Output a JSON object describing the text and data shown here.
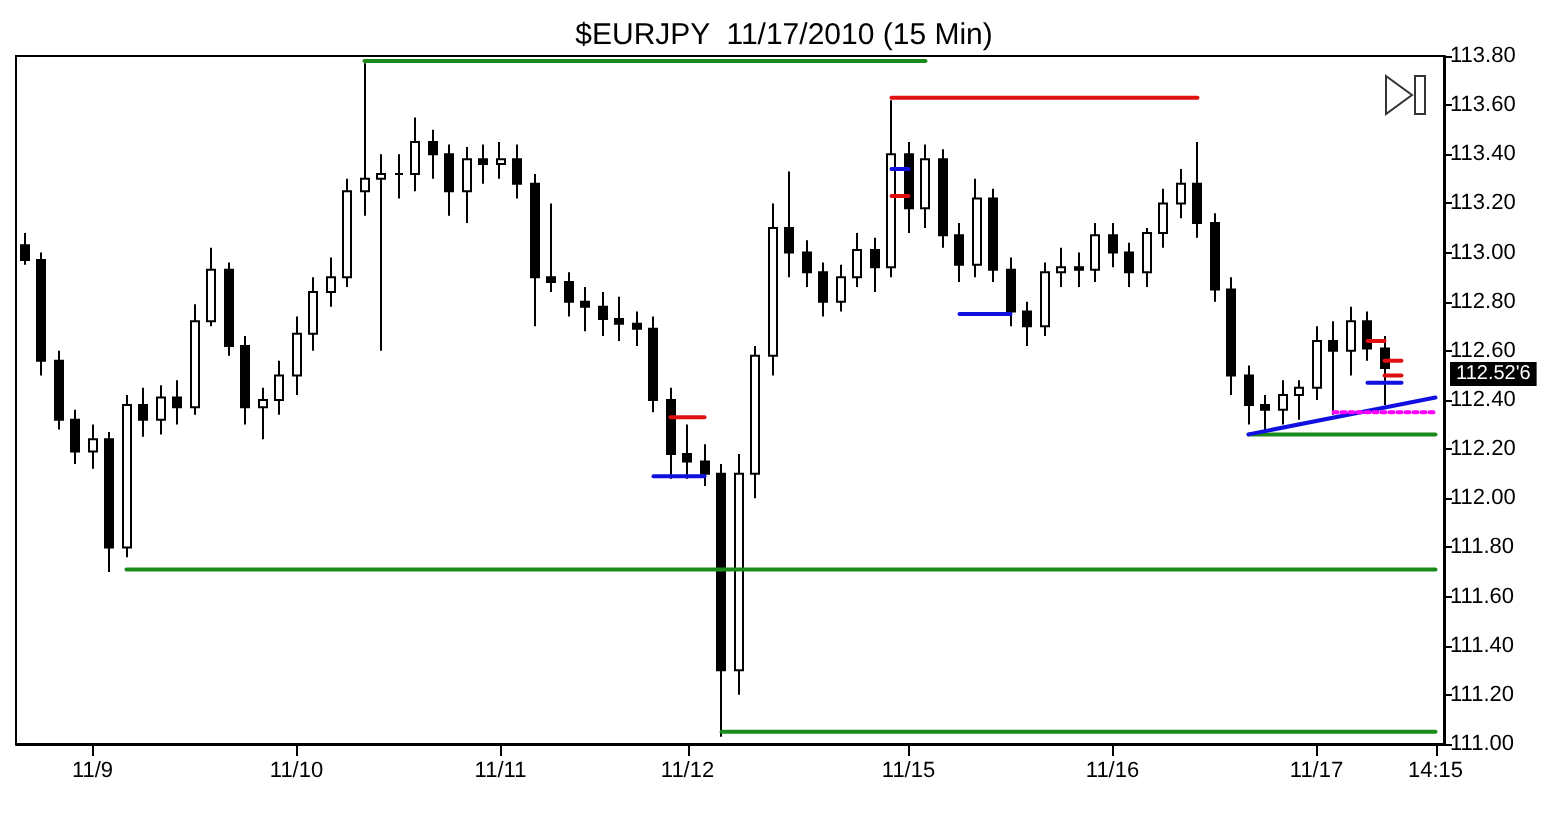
{
  "chart_data": {
    "type": "candlestick",
    "title": "$EURJPY  11/17/2010 (15 Min)",
    "categories": [
      null,
      null,
      null,
      null,
      "11/9",
      null,
      null,
      null,
      null,
      null,
      null,
      null,
      null,
      null,
      null,
      null,
      "11/10",
      null,
      null,
      null,
      null,
      null,
      null,
      null,
      null,
      null,
      null,
      null,
      "11/11",
      null,
      null,
      null,
      null,
      null,
      null,
      null,
      null,
      null,
      null,
      "11/12",
      null,
      null,
      null,
      null,
      null,
      null,
      null,
      null,
      null,
      null,
      null,
      null,
      "11/15",
      null,
      null,
      null,
      null,
      null,
      null,
      null,
      null,
      null,
      null,
      null,
      "11/16",
      null,
      null,
      null,
      null,
      null,
      null,
      null,
      null,
      null,
      null,
      null,
      "11/17",
      null,
      null,
      null,
      null,
      null,
      null,
      "14:15"
    ],
    "ohlc": [
      [
        113.03,
        113.08,
        112.95,
        112.97
      ],
      [
        112.97,
        113.0,
        112.5,
        112.56
      ],
      [
        112.56,
        112.6,
        112.28,
        112.32
      ],
      [
        112.32,
        112.36,
        112.14,
        112.19
      ],
      [
        112.19,
        112.3,
        112.12,
        112.24
      ],
      [
        112.24,
        112.27,
        111.7,
        111.8
      ],
      [
        111.8,
        112.42,
        111.76,
        112.38
      ],
      [
        112.38,
        112.45,
        112.25,
        112.32
      ],
      [
        112.32,
        112.46,
        112.26,
        112.41
      ],
      [
        112.41,
        112.48,
        112.3,
        112.37
      ],
      [
        112.37,
        112.79,
        112.34,
        112.72
      ],
      [
        112.72,
        113.02,
        112.7,
        112.93
      ],
      [
        112.93,
        112.96,
        112.58,
        112.62
      ],
      [
        112.62,
        112.66,
        112.3,
        112.37
      ],
      [
        112.37,
        112.45,
        112.24,
        112.4
      ],
      [
        112.4,
        112.56,
        112.34,
        112.5
      ],
      [
        112.5,
        112.74,
        112.42,
        112.67
      ],
      [
        112.67,
        112.9,
        112.6,
        112.84
      ],
      [
        112.84,
        112.98,
        112.78,
        112.9
      ],
      [
        112.9,
        113.3,
        112.86,
        113.25
      ],
      [
        113.25,
        113.77,
        113.15,
        113.3
      ],
      [
        113.3,
        113.4,
        112.6,
        113.32
      ],
      [
        113.32,
        113.4,
        113.22,
        113.32
      ],
      [
        113.32,
        113.55,
        113.25,
        113.45
      ],
      [
        113.45,
        113.5,
        113.3,
        113.4
      ],
      [
        113.4,
        113.44,
        113.15,
        113.25
      ],
      [
        113.25,
        113.43,
        113.12,
        113.38
      ],
      [
        113.38,
        113.44,
        113.28,
        113.36
      ],
      [
        113.36,
        113.45,
        113.3,
        113.38
      ],
      [
        113.38,
        113.44,
        113.22,
        113.28
      ],
      [
        113.28,
        113.32,
        112.7,
        112.9
      ],
      [
        112.9,
        113.2,
        112.84,
        112.88
      ],
      [
        112.88,
        112.92,
        112.74,
        112.8
      ],
      [
        112.8,
        112.86,
        112.68,
        112.78
      ],
      [
        112.78,
        112.84,
        112.66,
        112.73
      ],
      [
        112.73,
        112.82,
        112.64,
        112.71
      ],
      [
        112.71,
        112.76,
        112.62,
        112.69
      ],
      [
        112.69,
        112.74,
        112.35,
        112.4
      ],
      [
        112.4,
        112.45,
        112.08,
        112.18
      ],
      [
        112.18,
        112.3,
        112.08,
        112.15
      ],
      [
        112.15,
        112.22,
        112.05,
        112.1
      ],
      [
        112.1,
        112.14,
        111.03,
        111.3
      ],
      [
        111.3,
        112.18,
        111.2,
        112.1
      ],
      [
        112.1,
        112.62,
        112.0,
        112.58
      ],
      [
        112.58,
        113.2,
        112.5,
        113.1
      ],
      [
        113.1,
        113.33,
        112.9,
        113.0
      ],
      [
        113.0,
        113.05,
        112.86,
        112.92
      ],
      [
        112.92,
        112.96,
        112.74,
        112.8
      ],
      [
        112.8,
        112.95,
        112.76,
        112.9
      ],
      [
        112.9,
        113.08,
        112.86,
        113.01
      ],
      [
        113.01,
        113.06,
        112.84,
        112.94
      ],
      [
        112.94,
        113.62,
        112.9,
        113.4
      ],
      [
        113.4,
        113.45,
        113.08,
        113.18
      ],
      [
        113.18,
        113.44,
        113.1,
        113.38
      ],
      [
        113.38,
        113.42,
        113.02,
        113.07
      ],
      [
        113.07,
        113.12,
        112.88,
        112.95
      ],
      [
        112.95,
        113.3,
        112.9,
        113.22
      ],
      [
        113.22,
        113.26,
        112.88,
        112.93
      ],
      [
        112.93,
        112.98,
        112.7,
        112.76
      ],
      [
        112.76,
        112.8,
        112.62,
        112.7
      ],
      [
        112.7,
        112.96,
        112.66,
        112.92
      ],
      [
        112.92,
        113.02,
        112.86,
        112.94
      ],
      [
        112.94,
        113.0,
        112.86,
        112.93
      ],
      [
        112.93,
        113.12,
        112.88,
        113.07
      ],
      [
        113.07,
        113.12,
        112.94,
        113.0
      ],
      [
        113.0,
        113.04,
        112.86,
        112.92
      ],
      [
        112.92,
        113.1,
        112.86,
        113.08
      ],
      [
        113.08,
        113.26,
        113.02,
        113.2
      ],
      [
        113.2,
        113.34,
        113.14,
        113.28
      ],
      [
        113.28,
        113.45,
        113.06,
        113.12
      ],
      [
        113.12,
        113.16,
        112.8,
        112.85
      ],
      [
        112.85,
        112.9,
        112.42,
        112.5
      ],
      [
        112.5,
        112.54,
        112.3,
        112.38
      ],
      [
        112.38,
        112.42,
        112.26,
        112.36
      ],
      [
        112.36,
        112.48,
        112.3,
        112.42
      ],
      [
        112.42,
        112.48,
        112.32,
        112.45
      ],
      [
        112.45,
        112.7,
        112.4,
        112.64
      ],
      [
        112.64,
        112.72,
        112.34,
        112.6
      ],
      [
        112.6,
        112.78,
        112.5,
        112.72
      ],
      [
        112.72,
        112.76,
        112.56,
        112.61
      ],
      [
        112.61,
        112.66,
        112.38,
        112.53
      ],
      null,
      null,
      null
    ],
    "color": "#000000",
    "series": [
      {
        "type": "line",
        "color": "#1a8a1a",
        "values": [
          null,
          null,
          null,
          null,
          null,
          null,
          null,
          null,
          null,
          null,
          null,
          null,
          null,
          null,
          null,
          null,
          null,
          null,
          null,
          null,
          113.78,
          null,
          null,
          null,
          null,
          null,
          null,
          null,
          null,
          null,
          null,
          null,
          null,
          null,
          null,
          null,
          null,
          null,
          null,
          null,
          null,
          null,
          null,
          null,
          null,
          null,
          null,
          null,
          null,
          null,
          null,
          null,
          null,
          113.78,
          null,
          null,
          null,
          null,
          null,
          null,
          null,
          null,
          null,
          null,
          null,
          null,
          null,
          null,
          null,
          null,
          null,
          null,
          null,
          null,
          null,
          null,
          null,
          null,
          null,
          null,
          null,
          null,
          null,
          null
        ]
      },
      {
        "type": "line",
        "color": "#e01010",
        "values": [
          null,
          null,
          null,
          null,
          null,
          null,
          null,
          null,
          null,
          null,
          null,
          null,
          null,
          null,
          null,
          null,
          null,
          null,
          null,
          null,
          null,
          null,
          null,
          null,
          null,
          null,
          null,
          null,
          null,
          null,
          null,
          null,
          null,
          null,
          null,
          null,
          null,
          null,
          null,
          null,
          null,
          null,
          null,
          null,
          null,
          null,
          null,
          null,
          null,
          null,
          null,
          113.63,
          null,
          null,
          null,
          null,
          null,
          null,
          null,
          null,
          null,
          null,
          null,
          null,
          null,
          null,
          null,
          null,
          null,
          113.63,
          null,
          null,
          null,
          null,
          null,
          null,
          null,
          null,
          null,
          null,
          null,
          null,
          null,
          null
        ]
      },
      {
        "type": "line",
        "color": "#1a8a1a",
        "values": [
          null,
          null,
          null,
          null,
          null,
          null,
          111.71,
          null,
          null,
          null,
          null,
          null,
          null,
          null,
          null,
          null,
          null,
          null,
          null,
          null,
          null,
          null,
          null,
          null,
          null,
          null,
          null,
          null,
          null,
          null,
          null,
          null,
          null,
          null,
          null,
          null,
          null,
          null,
          null,
          null,
          null,
          null,
          null,
          null,
          null,
          null,
          null,
          null,
          null,
          null,
          null,
          null,
          null,
          null,
          null,
          null,
          null,
          null,
          null,
          null,
          null,
          null,
          null,
          null,
          null,
          null,
          null,
          null,
          null,
          null,
          null,
          null,
          null,
          null,
          null,
          null,
          null,
          null,
          null,
          null,
          null,
          null,
          null,
          111.71
        ]
      },
      {
        "type": "line",
        "color": "#1a8a1a",
        "values": [
          null,
          null,
          null,
          null,
          null,
          null,
          null,
          null,
          null,
          null,
          null,
          null,
          null,
          null,
          null,
          null,
          null,
          null,
          null,
          null,
          null,
          null,
          null,
          null,
          null,
          null,
          null,
          null,
          null,
          null,
          null,
          null,
          null,
          null,
          null,
          null,
          null,
          null,
          null,
          null,
          null,
          111.05,
          null,
          null,
          null,
          null,
          null,
          null,
          null,
          null,
          null,
          null,
          null,
          null,
          null,
          null,
          null,
          null,
          null,
          null,
          null,
          null,
          null,
          null,
          null,
          null,
          null,
          null,
          null,
          null,
          null,
          null,
          null,
          null,
          null,
          null,
          null,
          null,
          null,
          null,
          null,
          null,
          null,
          111.05
        ]
      },
      {
        "type": "line",
        "color": "#1a8a1a",
        "values": [
          null,
          null,
          null,
          null,
          null,
          null,
          null,
          null,
          null,
          null,
          null,
          null,
          null,
          null,
          null,
          null,
          null,
          null,
          null,
          null,
          null,
          null,
          null,
          null,
          null,
          null,
          null,
          null,
          null,
          null,
          null,
          null,
          null,
          null,
          null,
          null,
          null,
          null,
          null,
          null,
          null,
          null,
          null,
          null,
          null,
          null,
          null,
          null,
          null,
          null,
          null,
          null,
          null,
          null,
          null,
          null,
          null,
          null,
          null,
          null,
          null,
          null,
          null,
          null,
          null,
          null,
          null,
          null,
          null,
          null,
          null,
          null,
          112.26,
          null,
          null,
          null,
          null,
          null,
          null,
          null,
          null,
          null,
          null,
          112.26
        ]
      },
      {
        "type": "line",
        "color": "#1010e0",
        "values": [
          null,
          null,
          null,
          null,
          null,
          null,
          null,
          null,
          null,
          null,
          null,
          null,
          null,
          null,
          null,
          null,
          null,
          null,
          null,
          null,
          null,
          null,
          null,
          null,
          null,
          null,
          null,
          null,
          null,
          null,
          null,
          null,
          null,
          null,
          null,
          null,
          null,
          null,
          null,
          null,
          null,
          null,
          null,
          null,
          null,
          null,
          null,
          null,
          null,
          null,
          null,
          null,
          null,
          null,
          null,
          null,
          null,
          null,
          null,
          null,
          null,
          null,
          null,
          null,
          null,
          null,
          null,
          null,
          null,
          null,
          null,
          null,
          112.26,
          null,
          null,
          null,
          null,
          null,
          null,
          null,
          null,
          null,
          null,
          112.41
        ]
      },
      {
        "type": "line",
        "color": "#ff00ff",
        "line_style": "dotted",
        "values": [
          null,
          null,
          null,
          null,
          null,
          null,
          null,
          null,
          null,
          null,
          null,
          null,
          null,
          null,
          null,
          null,
          null,
          null,
          null,
          null,
          null,
          null,
          null,
          null,
          null,
          null,
          null,
          null,
          null,
          null,
          null,
          null,
          null,
          null,
          null,
          null,
          null,
          null,
          null,
          null,
          null,
          null,
          null,
          null,
          null,
          null,
          null,
          null,
          null,
          null,
          null,
          null,
          null,
          null,
          null,
          null,
          null,
          null,
          null,
          null,
          null,
          null,
          null,
          null,
          null,
          null,
          null,
          null,
          null,
          null,
          null,
          null,
          null,
          null,
          null,
          null,
          null,
          112.35,
          null,
          null,
          null,
          null,
          null,
          112.35
        ]
      },
      {
        "type": "line",
        "color": "#e01010",
        "values": [
          null,
          null,
          null,
          null,
          null,
          null,
          null,
          null,
          null,
          null,
          null,
          null,
          null,
          null,
          null,
          null,
          null,
          null,
          null,
          null,
          null,
          null,
          null,
          null,
          null,
          null,
          null,
          null,
          null,
          null,
          null,
          null,
          null,
          null,
          null,
          null,
          null,
          null,
          112.33,
          null,
          112.33,
          null,
          null,
          null,
          null,
          null,
          null,
          null,
          null,
          null,
          null,
          null,
          null,
          null,
          null,
          null,
          null,
          null,
          null,
          null,
          null,
          null,
          null,
          null,
          null,
          null,
          null,
          null,
          null,
          null,
          null,
          null,
          null,
          null,
          null,
          null,
          null,
          null,
          null,
          null,
          null,
          null,
          null,
          null
        ]
      },
      {
        "type": "line",
        "color": "#1010e0",
        "values": [
          null,
          null,
          null,
          null,
          null,
          null,
          null,
          null,
          null,
          null,
          null,
          null,
          null,
          null,
          null,
          null,
          null,
          null,
          null,
          null,
          null,
          null,
          null,
          null,
          null,
          null,
          null,
          null,
          null,
          null,
          null,
          null,
          null,
          null,
          null,
          null,
          null,
          112.09,
          null,
          null,
          112.09,
          null,
          null,
          null,
          null,
          null,
          null,
          null,
          null,
          null,
          null,
          null,
          null,
          null,
          null,
          null,
          null,
          null,
          null,
          null,
          null,
          null,
          null,
          null,
          null,
          null,
          null,
          null,
          null,
          null,
          null,
          null,
          null,
          null,
          null,
          null,
          null,
          null,
          null,
          null,
          null,
          null,
          null,
          null
        ]
      },
      {
        "type": "line",
        "color": "#1010e0",
        "values": [
          null,
          null,
          null,
          null,
          null,
          null,
          null,
          null,
          null,
          null,
          null,
          null,
          null,
          null,
          null,
          null,
          null,
          null,
          null,
          null,
          null,
          null,
          null,
          null,
          null,
          null,
          null,
          null,
          null,
          null,
          null,
          null,
          null,
          null,
          null,
          null,
          null,
          null,
          null,
          null,
          null,
          null,
          null,
          null,
          null,
          null,
          null,
          null,
          null,
          null,
          null,
          113.34,
          113.34,
          null,
          null,
          null,
          null,
          null,
          null,
          null,
          null,
          null,
          null,
          null,
          null,
          null,
          null,
          null,
          null,
          null,
          null,
          null,
          null,
          null,
          null,
          null,
          null,
          null,
          null,
          null,
          null,
          null,
          null,
          null
        ]
      },
      {
        "type": "line",
        "color": "#e01010",
        "values": [
          null,
          null,
          null,
          null,
          null,
          null,
          null,
          null,
          null,
          null,
          null,
          null,
          null,
          null,
          null,
          null,
          null,
          null,
          null,
          null,
          null,
          null,
          null,
          null,
          null,
          null,
          null,
          null,
          null,
          null,
          null,
          null,
          null,
          null,
          null,
          null,
          null,
          null,
          null,
          null,
          null,
          null,
          null,
          null,
          null,
          null,
          null,
          null,
          null,
          null,
          null,
          113.23,
          113.23,
          null,
          null,
          null,
          null,
          null,
          null,
          null,
          null,
          null,
          null,
          null,
          null,
          null,
          null,
          null,
          null,
          null,
          null,
          null,
          null,
          null,
          null,
          null,
          null,
          null,
          null,
          null,
          null,
          null,
          null,
          null
        ]
      },
      {
        "type": "line",
        "color": "#1010e0",
        "values": [
          null,
          null,
          null,
          null,
          null,
          null,
          null,
          null,
          null,
          null,
          null,
          null,
          null,
          null,
          null,
          null,
          null,
          null,
          null,
          null,
          null,
          null,
          null,
          null,
          null,
          null,
          null,
          null,
          null,
          null,
          null,
          null,
          null,
          null,
          null,
          null,
          null,
          null,
          null,
          null,
          null,
          null,
          null,
          null,
          null,
          null,
          null,
          null,
          null,
          null,
          null,
          null,
          null,
          null,
          null,
          112.75,
          null,
          null,
          112.75,
          null,
          null,
          null,
          null,
          null,
          null,
          null,
          null,
          null,
          null,
          null,
          null,
          null,
          null,
          null,
          null,
          null,
          null,
          null,
          null,
          null,
          null,
          null,
          null,
          null
        ]
      },
      {
        "type": "line",
        "color": "#e01010",
        "values": [
          null,
          null,
          null,
          null,
          null,
          null,
          null,
          null,
          null,
          null,
          null,
          null,
          null,
          null,
          null,
          null,
          null,
          null,
          null,
          null,
          null,
          null,
          null,
          null,
          null,
          null,
          null,
          null,
          null,
          null,
          null,
          null,
          null,
          null,
          null,
          null,
          null,
          null,
          null,
          null,
          null,
          null,
          null,
          null,
          null,
          null,
          null,
          null,
          null,
          null,
          null,
          null,
          null,
          null,
          null,
          null,
          null,
          null,
          null,
          null,
          null,
          null,
          null,
          null,
          null,
          null,
          null,
          null,
          null,
          null,
          null,
          null,
          null,
          null,
          null,
          null,
          null,
          null,
          null,
          112.64,
          112.64,
          null,
          null,
          null
        ]
      },
      {
        "type": "line",
        "color": "#e01010",
        "values": [
          null,
          null,
          null,
          null,
          null,
          null,
          null,
          null,
          null,
          null,
          null,
          null,
          null,
          null,
          null,
          null,
          null,
          null,
          null,
          null,
          null,
          null,
          null,
          null,
          null,
          null,
          null,
          null,
          null,
          null,
          null,
          null,
          null,
          null,
          null,
          null,
          null,
          null,
          null,
          null,
          null,
          null,
          null,
          null,
          null,
          null,
          null,
          null,
          null,
          null,
          null,
          null,
          null,
          null,
          null,
          null,
          null,
          null,
          null,
          null,
          null,
          null,
          null,
          null,
          null,
          null,
          null,
          null,
          null,
          null,
          null,
          null,
          null,
          null,
          null,
          null,
          null,
          null,
          null,
          null,
          112.56,
          112.56,
          null,
          null
        ]
      },
      {
        "type": "line",
        "color": "#e01010",
        "values": [
          null,
          null,
          null,
          null,
          null,
          null,
          null,
          null,
          null,
          null,
          null,
          null,
          null,
          null,
          null,
          null,
          null,
          null,
          null,
          null,
          null,
          null,
          null,
          null,
          null,
          null,
          null,
          null,
          null,
          null,
          null,
          null,
          null,
          null,
          null,
          null,
          null,
          null,
          null,
          null,
          null,
          null,
          null,
          null,
          null,
          null,
          null,
          null,
          null,
          null,
          null,
          null,
          null,
          null,
          null,
          null,
          null,
          null,
          null,
          null,
          null,
          null,
          null,
          null,
          null,
          null,
          null,
          null,
          null,
          null,
          null,
          null,
          null,
          null,
          null,
          null,
          null,
          null,
          null,
          null,
          112.5,
          112.5,
          null,
          null
        ]
      },
      {
        "type": "line",
        "color": "#1010e0",
        "values": [
          null,
          null,
          null,
          null,
          null,
          null,
          null,
          null,
          null,
          null,
          null,
          null,
          null,
          null,
          null,
          null,
          null,
          null,
          null,
          null,
          null,
          null,
          null,
          null,
          null,
          null,
          null,
          null,
          null,
          null,
          null,
          null,
          null,
          null,
          null,
          null,
          null,
          null,
          null,
          null,
          null,
          null,
          null,
          null,
          null,
          null,
          null,
          null,
          null,
          null,
          null,
          null,
          null,
          null,
          null,
          null,
          null,
          null,
          null,
          null,
          null,
          null,
          null,
          null,
          null,
          null,
          null,
          null,
          null,
          null,
          null,
          null,
          null,
          null,
          null,
          null,
          null,
          null,
          null,
          112.47,
          null,
          112.47,
          null,
          null
        ]
      }
    ],
    "marker": "none",
    "line_style": "solid",
    "ylim": [
      111.0,
      113.8
    ],
    "yticks": [
      {
        "value": 111.0,
        "label": "111.00"
      },
      {
        "value": 111.2,
        "label": "111.20"
      },
      {
        "value": 111.4,
        "label": "111.40"
      },
      {
        "value": 111.6,
        "label": "111.60"
      },
      {
        "value": 111.8,
        "label": "111.80"
      },
      {
        "value": 112.0,
        "label": "112.00"
      },
      {
        "value": 112.2,
        "label": "112.20"
      },
      {
        "value": 112.4,
        "label": "112.40"
      },
      {
        "value": 112.6,
        "label": "112.60"
      },
      {
        "value": 112.8,
        "label": "112.80"
      },
      {
        "value": 113.0,
        "label": "113.00"
      },
      {
        "value": 113.2,
        "label": "113.20"
      },
      {
        "value": 113.4,
        "label": "113.40"
      },
      {
        "value": 113.6,
        "label": "113.60"
      },
      {
        "value": 113.8,
        "label": "113.80"
      }
    ],
    "annotations": [
      "112.52'6"
    ],
    "grid": false
  }
}
